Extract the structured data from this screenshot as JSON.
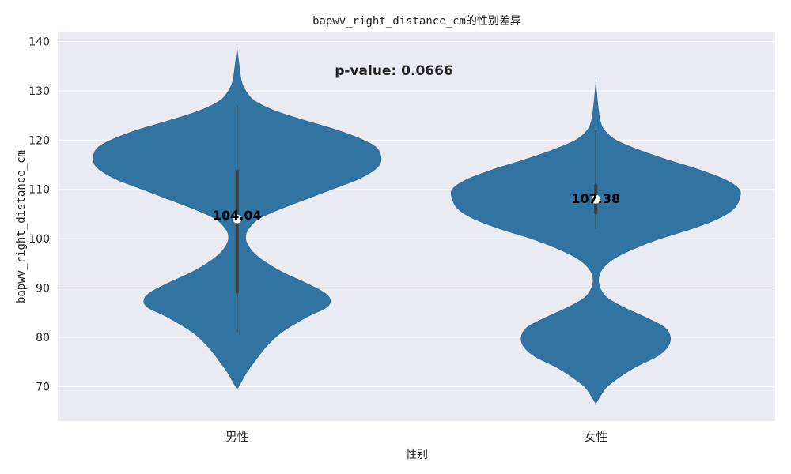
{
  "chart_data": {
    "type": "violin",
    "title": "bapwv_right_distance_cm的性别差异",
    "xlabel": "性别",
    "ylabel": "bapwv_right_distance_cm",
    "categories": [
      "男性",
      "女性"
    ],
    "ylim": [
      63,
      142
    ],
    "yticks": [
      70,
      80,
      90,
      100,
      110,
      120,
      130,
      140
    ],
    "grid": true,
    "annotation": "p-value: 0.0666",
    "colors": {
      "violin_fill": "#3274a1",
      "plot_background": "#eaeaf2",
      "grid": "#ffffff",
      "box": "#3d3d3d"
    },
    "violins": [
      {
        "category": "男性",
        "mean": 104.04,
        "mean_label": "104.04",
        "range": [
          69.5,
          138.5
        ],
        "whisker": [
          81,
          127
        ],
        "box": [
          89,
          114
        ],
        "median": 104,
        "profile": [
          [
            69.5,
            0
          ],
          [
            71,
            0.03
          ],
          [
            73,
            0.07
          ],
          [
            75,
            0.12
          ],
          [
            78,
            0.2
          ],
          [
            81,
            0.31
          ],
          [
            84,
            0.48
          ],
          [
            86,
            0.62
          ],
          [
            87.5,
            0.65
          ],
          [
            89,
            0.61
          ],
          [
            91,
            0.48
          ],
          [
            93,
            0.33
          ],
          [
            95,
            0.21
          ],
          [
            97,
            0.12
          ],
          [
            99,
            0.07
          ],
          [
            100.5,
            0.06
          ],
          [
            102,
            0.08
          ],
          [
            104,
            0.15
          ],
          [
            106,
            0.3
          ],
          [
            108,
            0.48
          ],
          [
            110,
            0.66
          ],
          [
            112,
            0.84
          ],
          [
            114,
            0.96
          ],
          [
            115.5,
            1.0
          ],
          [
            117,
            1.0
          ],
          [
            118.5,
            0.97
          ],
          [
            120,
            0.88
          ],
          [
            122,
            0.7
          ],
          [
            124,
            0.47
          ],
          [
            126,
            0.26
          ],
          [
            128,
            0.12
          ],
          [
            130,
            0.06
          ],
          [
            132,
            0.03
          ],
          [
            135,
            0.015
          ],
          [
            138.5,
            0
          ]
        ]
      },
      {
        "category": "女性",
        "mean": 107.38,
        "mean_label": "107.38",
        "range": [
          66.5,
          131.5
        ],
        "whisker": [
          102,
          122
        ],
        "box": [
          105,
          111
        ],
        "median": 108,
        "profile": [
          [
            66.5,
            0
          ],
          [
            68,
            0.03
          ],
          [
            70,
            0.08
          ],
          [
            72,
            0.17
          ],
          [
            74,
            0.28
          ],
          [
            76,
            0.42
          ],
          [
            78,
            0.5
          ],
          [
            80,
            0.52
          ],
          [
            82,
            0.48
          ],
          [
            84,
            0.35
          ],
          [
            86,
            0.2
          ],
          [
            88,
            0.08
          ],
          [
            90,
            0.03
          ],
          [
            92,
            0.02
          ],
          [
            94,
            0.05
          ],
          [
            96,
            0.13
          ],
          [
            98,
            0.27
          ],
          [
            100,
            0.45
          ],
          [
            102,
            0.67
          ],
          [
            104,
            0.85
          ],
          [
            106,
            0.96
          ],
          [
            108,
            1.0
          ],
          [
            110,
            1.0
          ],
          [
            112,
            0.9
          ],
          [
            114,
            0.72
          ],
          [
            116,
            0.5
          ],
          [
            118,
            0.3
          ],
          [
            120,
            0.14
          ],
          [
            122,
            0.06
          ],
          [
            124,
            0.03
          ],
          [
            127,
            0.015
          ],
          [
            131.5,
            0
          ]
        ]
      }
    ]
  }
}
